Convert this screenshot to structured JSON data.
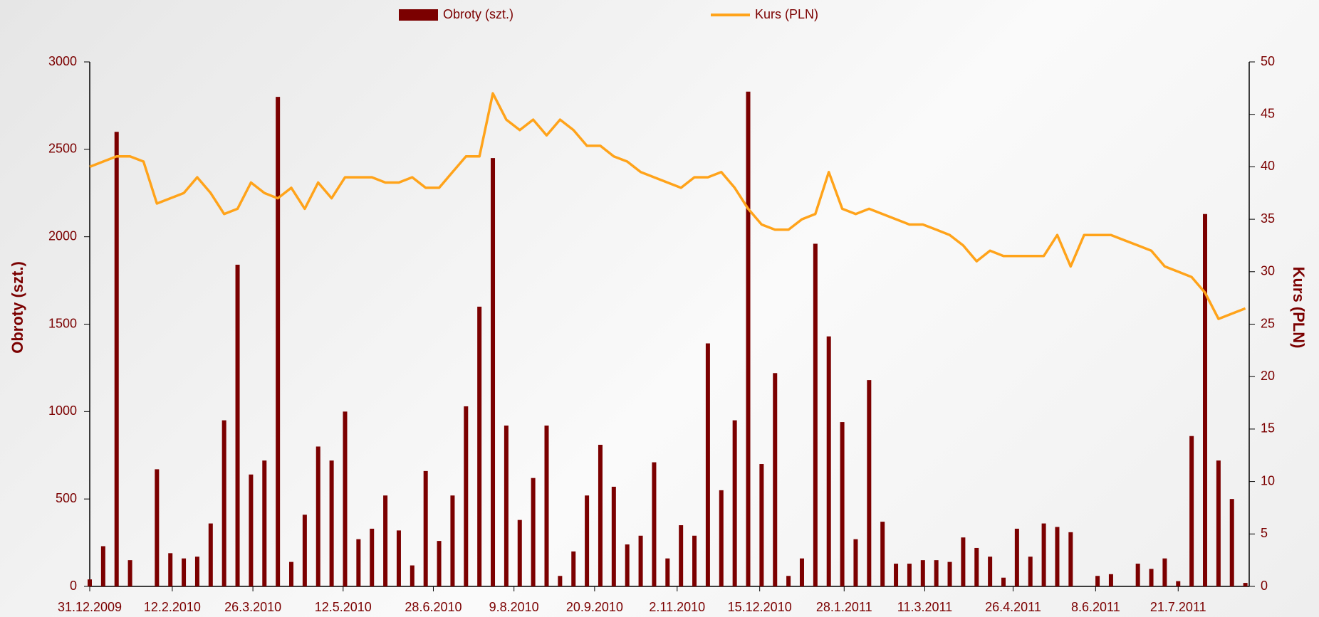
{
  "chart_data": {
    "type": "bar-line",
    "x": [
      "31.12.2009",
      "7.1.2010",
      "14.1.2010",
      "21.1.2010",
      "28.1.2010",
      "4.2.2010",
      "11.2.2010",
      "18.2.2010",
      "25.2.2010",
      "4.3.2010",
      "11.3.2010",
      "18.3.2010",
      "25.3.2010",
      "1.4.2010",
      "8.4.2010",
      "15.4.2010",
      "22.4.2010",
      "29.4.2010",
      "6.5.2010",
      "13.5.2010",
      "20.5.2010",
      "27.5.2010",
      "3.6.2010",
      "10.6.2010",
      "17.6.2010",
      "24.6.2010",
      "1.7.2010",
      "8.7.2010",
      "15.7.2010",
      "22.7.2010",
      "29.7.2010",
      "5.8.2010",
      "12.8.2010",
      "19.8.2010",
      "26.8.2010",
      "2.9.2010",
      "9.9.2010",
      "16.9.2010",
      "23.9.2010",
      "30.9.2010",
      "7.10.2010",
      "14.10.2010",
      "21.10.2010",
      "28.10.2010",
      "4.11.2010",
      "11.11.2010",
      "18.11.2010",
      "25.11.2010",
      "2.12.2010",
      "9.12.2010",
      "16.12.2010",
      "23.12.2010",
      "30.12.2010",
      "6.1.2011",
      "13.1.2011",
      "20.1.2011",
      "27.1.2011",
      "3.2.2011",
      "10.2.2011",
      "17.2.2011",
      "24.2.2011",
      "3.3.2011",
      "10.3.2011",
      "17.3.2011",
      "24.3.2011",
      "31.3.2011",
      "7.4.2011",
      "14.4.2011",
      "21.4.2011",
      "28.4.2011",
      "5.5.2011",
      "12.5.2011",
      "19.5.2011",
      "26.5.2011",
      "2.6.2011",
      "9.6.2011",
      "16.6.2011",
      "23.6.2011",
      "30.6.2011",
      "7.7.2011",
      "14.7.2011",
      "21.7.2011",
      "28.7.2011",
      "4.8.2011",
      "11.8.2011",
      "18.8.2011",
      "25.8.2011"
    ],
    "series": [
      {
        "name": "Obroty (szt.)",
        "type": "bar",
        "color": "#7b0000",
        "axis": "y",
        "values": [
          40,
          230,
          2600,
          150,
          0,
          670,
          190,
          160,
          170,
          360,
          950,
          1840,
          640,
          720,
          2800,
          140,
          410,
          800,
          720,
          1000,
          270,
          330,
          520,
          320,
          120,
          660,
          260,
          520,
          1030,
          1600,
          2450,
          920,
          380,
          620,
          920,
          60,
          200,
          520,
          810,
          570,
          240,
          290,
          710,
          160,
          350,
          290,
          1390,
          550,
          950,
          2830,
          700,
          1220,
          60,
          160,
          1960,
          1430,
          940,
          270,
          1180,
          370,
          130,
          130,
          150,
          150,
          140,
          280,
          220,
          170,
          50,
          330,
          170,
          360,
          340,
          310,
          0,
          60,
          70,
          0,
          130,
          100,
          160,
          30,
          860,
          2130,
          720,
          500,
          20
        ]
      },
      {
        "name": "Kurs (PLN)",
        "type": "line",
        "color": "#ffa31a",
        "axis": "y2",
        "values": [
          40,
          40.5,
          41,
          41,
          40.5,
          36.5,
          37,
          37.5,
          39,
          37.5,
          35.5,
          36,
          38.5,
          37.5,
          37,
          38,
          36,
          38.5,
          37,
          39,
          39,
          39,
          38.5,
          38.5,
          39,
          38,
          38,
          39.5,
          41,
          41,
          47,
          44.5,
          43.5,
          44.5,
          43,
          44.5,
          43.5,
          42,
          42,
          41,
          40.5,
          39.5,
          39,
          38.5,
          38,
          39,
          39,
          39.5,
          38,
          36,
          34.5,
          34,
          34,
          35,
          35.5,
          39.5,
          36,
          35.5,
          36,
          35.5,
          35,
          34.5,
          34.5,
          34,
          33.5,
          32.5,
          31,
          32,
          31.5,
          31.5,
          31.5,
          31.5,
          33.5,
          30.5,
          33.5,
          33.5,
          33.5,
          33,
          32.5,
          32,
          30.5,
          30,
          29.5,
          28,
          25.5,
          26,
          26.5
        ]
      }
    ],
    "xlim": [
      "31.12.2009",
      "27.8.2011"
    ],
    "xticks": [
      "31.12.2009",
      "12.2.2010",
      "26.3.2010",
      "12.5.2010",
      "28.6.2010",
      "9.8.2010",
      "20.9.2010",
      "2.11.2010",
      "15.12.2010",
      "28.1.2011",
      "11.3.2011",
      "26.4.2011",
      "8.6.2011",
      "21.7.2011"
    ],
    "ylim": [
      0,
      3000
    ],
    "yticks": [
      0,
      500,
      1000,
      1500,
      2000,
      2500,
      3000
    ],
    "y2lim": [
      0,
      50
    ],
    "y2ticks": [
      0,
      5,
      10,
      15,
      20,
      25,
      30,
      35,
      40,
      45,
      50
    ],
    "ylabel": "Obroty (szt.)",
    "y2label": "Kurs (PLN)",
    "legend": "top"
  }
}
